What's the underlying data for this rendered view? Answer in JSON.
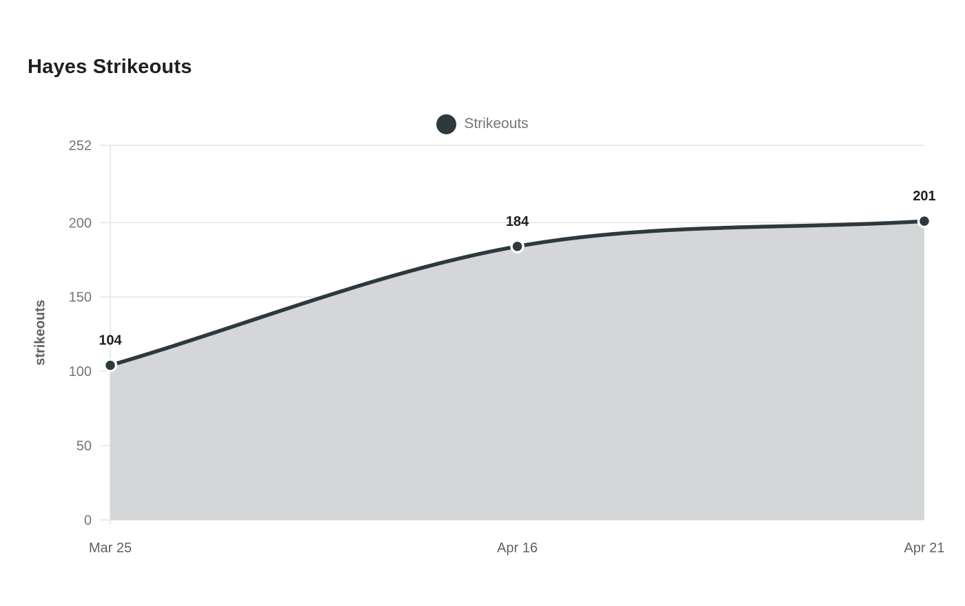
{
  "page": {
    "title": "Hayes Strikeouts"
  },
  "legend": {
    "label": "Strikeouts"
  },
  "chart_data": {
    "type": "area",
    "title": "Hayes Strikeouts",
    "categories": [
      "Mar 25",
      "Apr 16",
      "Apr 21"
    ],
    "series": [
      {
        "name": "Strikeouts",
        "values": [
          104,
          184,
          201
        ]
      }
    ],
    "data_labels": [
      "104",
      "184",
      "201"
    ],
    "xlabel": "",
    "ylabel": "strikeouts",
    "yticks": [
      0,
      50,
      100,
      150,
      200,
      252
    ],
    "ylim": [
      0,
      252
    ],
    "grid": true,
    "smooth_line": true,
    "legend_position": "top-center",
    "colors": {
      "line": "#2e393d",
      "area_fill": "#d4d6d7",
      "marker": "#2e393d",
      "marker_ring": "#ffffff",
      "grid": "#e4e4e4",
      "tick_text": "#757575",
      "x_tick_text": "#616161",
      "data_label": "#1f1f1f",
      "title_text": "#1f1f1f",
      "legend_text": "#757575"
    }
  }
}
